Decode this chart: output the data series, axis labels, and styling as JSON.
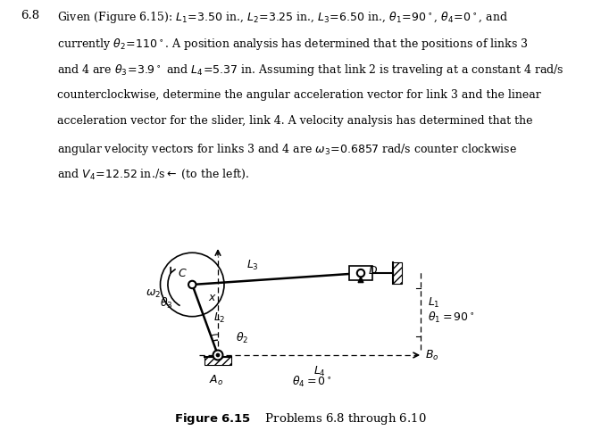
{
  "background": "#ffffff",
  "fig_width": 6.73,
  "fig_height": 4.92,
  "dpi": 100,
  "text_lines": [
    "Given (Figure 6.15): $L_1\\!=\\!3.50$ in., $L_2\\!=\\!3.25$ in., $L_3\\!=\\!6.50$ in., $\\theta_1\\!=\\!90^\\circ$, $\\theta_4\\!=\\!0^\\circ$, and",
    "currently $\\theta_2\\!=\\!110^\\circ$. A position analysis has determined that the positions of links 3",
    "and 4 are $\\theta_3\\!=\\!3.9^\\circ$ and $L_4\\!=\\!5.37$ in. Assuming that link 2 is traveling at a constant 4 rad/s",
    "counterclockwise, determine the angular acceleration vector for link 3 and the linear",
    "acceleration vector for the slider, link 4. A velocity analysis has determined that the",
    "angular velocity vectors for links 3 and 4 are $\\omega_3\\!=\\!0.6857$ rad/s counter clockwise",
    "and $V_4\\!=\\!12.52$ in./s$\\leftarrow$ (to the left)."
  ],
  "label_68": "6.8",
  "caption": "Problems 6.8 through 6.10",
  "caption_bold": "Figure 6.15"
}
